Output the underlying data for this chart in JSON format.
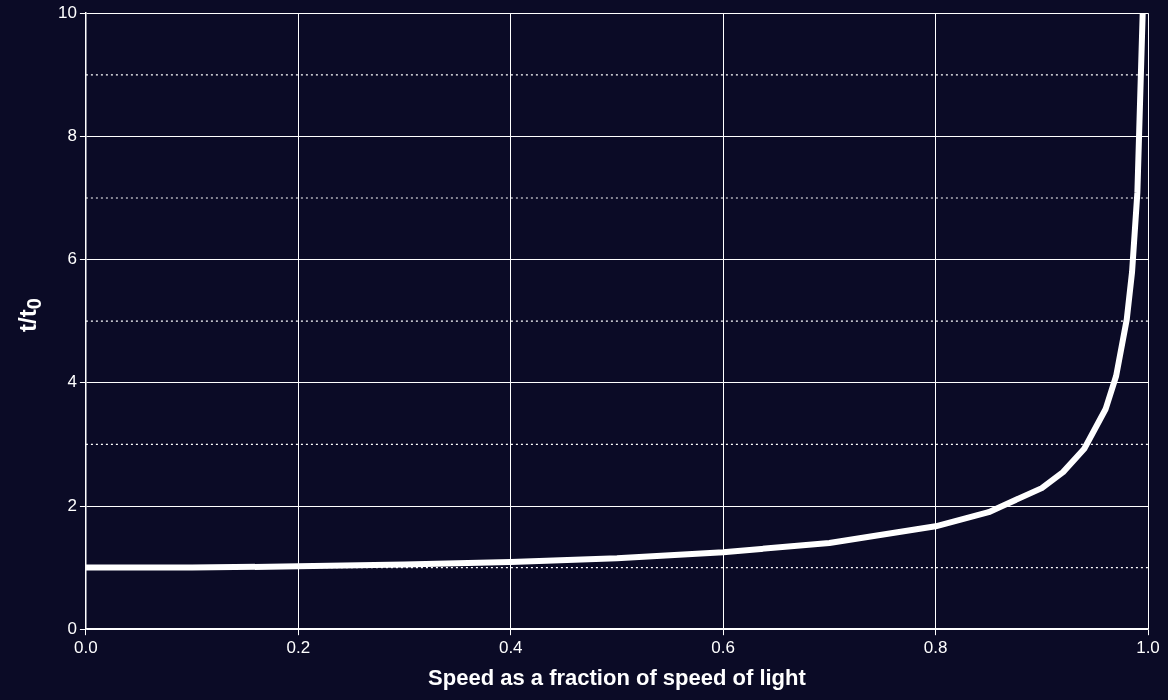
{
  "chart_data": {
    "type": "line",
    "xlabel": "Speed as a fraction of speed of light",
    "ylabel": "t/t$_{0}$",
    "x": [
      0,
      0.1,
      0.2,
      0.3,
      0.4,
      0.5,
      0.6,
      0.7,
      0.8,
      0.85,
      0.9,
      0.92,
      0.94,
      0.96,
      0.97,
      0.98,
      0.985,
      0.99,
      0.995
    ],
    "series": [
      {
        "color": "#ffffff",
        "values": [
          1.0,
          1.0,
          1.02,
          1.05,
          1.09,
          1.15,
          1.25,
          1.4,
          1.67,
          1.9,
          2.29,
          2.55,
          2.93,
          3.57,
          4.11,
          5.03,
          5.8,
          7.09,
          10.0
        ]
      }
    ],
    "xlim": [
      0,
      1
    ],
    "ylim": [
      0,
      10
    ],
    "xticks": [
      {
        "value": 0,
        "label": "0.0"
      },
      0.2,
      0.4,
      0.6,
      0.8,
      {
        "value": 1,
        "label": "1.0"
      }
    ],
    "yticks": [
      0,
      2,
      4,
      6,
      8,
      10
    ],
    "ref_lines": [
      {
        "axis": "y",
        "value": 1,
        "line_style": "dotted",
        "color": "#ffffff"
      },
      {
        "axis": "y",
        "value": 3,
        "line_style": "dotted",
        "color": "#ffffff"
      },
      {
        "axis": "y",
        "value": 5,
        "line_style": "dotted",
        "color": "#ffffff"
      },
      {
        "axis": "y",
        "value": 7,
        "line_style": "dotted",
        "color": "#ffffff"
      },
      {
        "axis": "y",
        "value": 9,
        "line_style": "dotted",
        "color": "#ffffff"
      }
    ],
    "grid": true,
    "legend": false,
    "marker": "none",
    "line_style": "solid"
  }
}
